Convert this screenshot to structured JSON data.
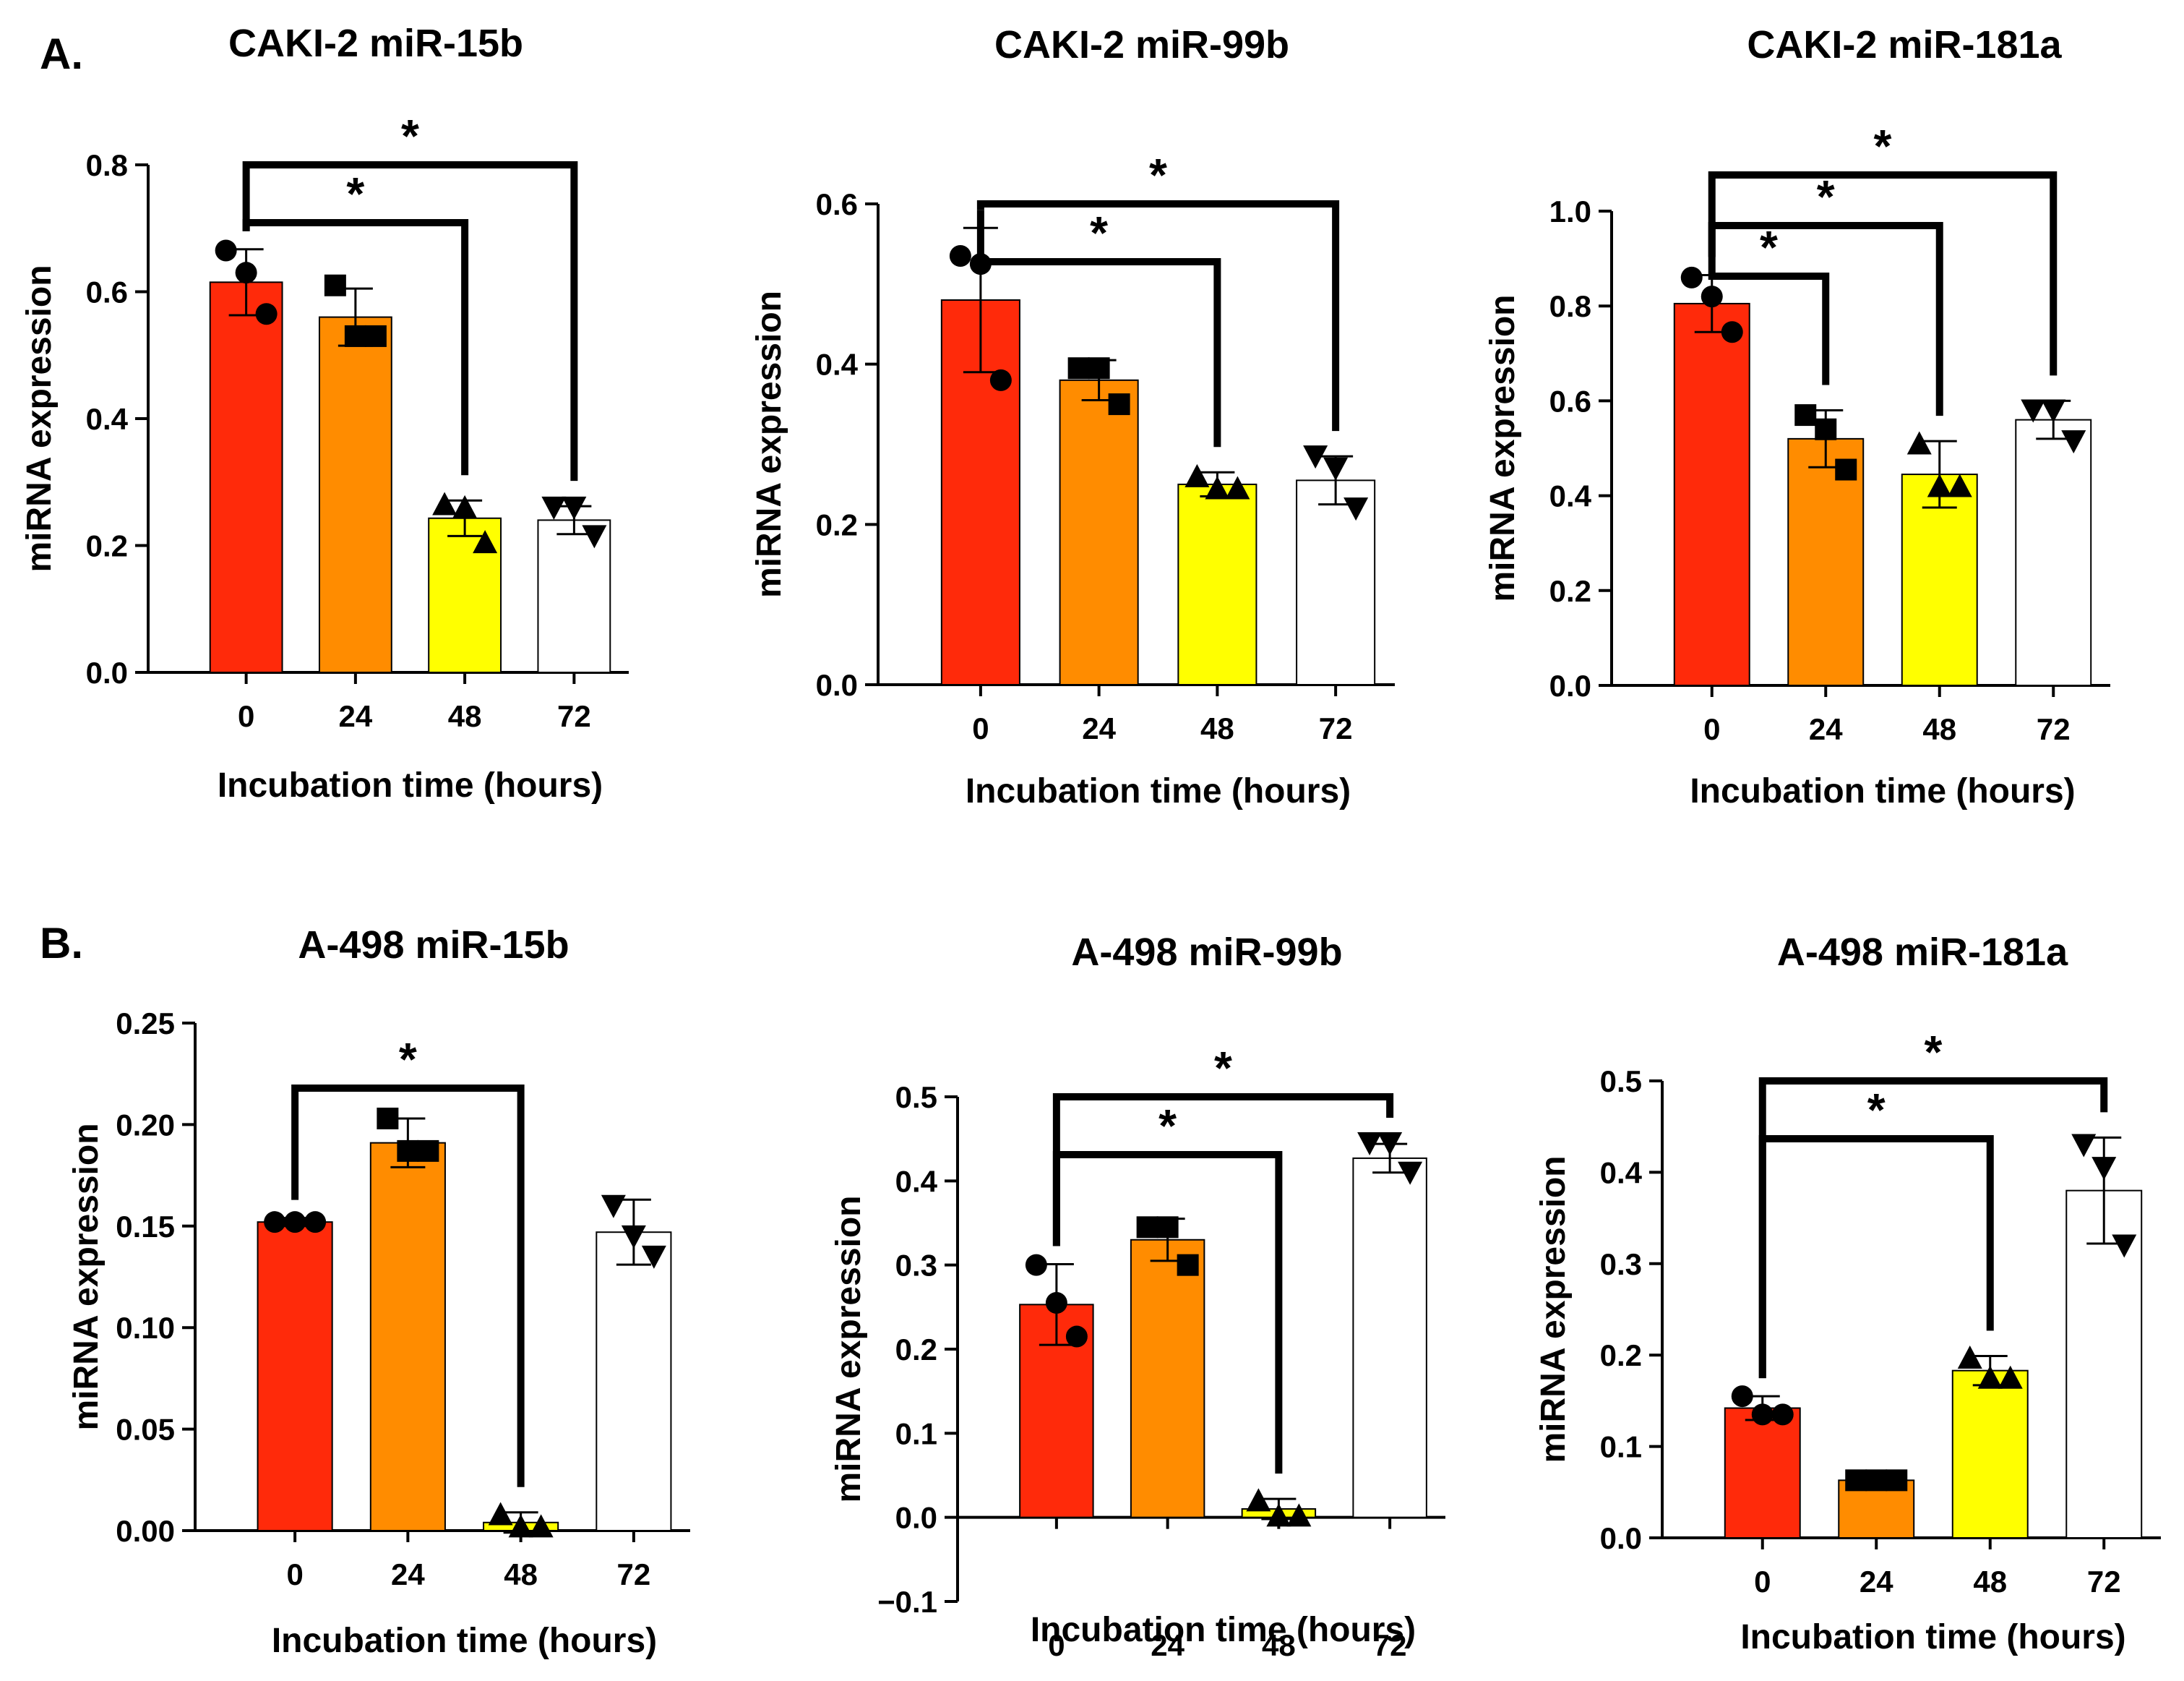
{
  "panels": [
    {
      "label": "A."
    },
    {
      "label": "B."
    }
  ],
  "chart_data": [
    {
      "type": "bar",
      "title": "CAKI-2  miR-15b",
      "xlabel": "Incubation time (hours)",
      "ylabel": "miRNA expression",
      "categories": [
        "0",
        "24",
        "48",
        "72"
      ],
      "values": [
        0.615,
        0.56,
        0.243,
        0.24
      ],
      "errors": [
        0.052,
        0.045,
        0.028,
        0.022
      ],
      "points": [
        [
          0.665,
          0.63,
          0.565
        ],
        [
          0.61,
          0.53,
          0.53
        ],
        [
          0.265,
          0.26,
          0.205
        ],
        [
          0.26,
          0.26,
          0.215
        ]
      ],
      "markers": [
        "circle",
        "square",
        "triangle",
        "triangle-down"
      ],
      "colors": [
        "#ff2a0a",
        "#ff8c00",
        "#ffff00",
        "#ffffff"
      ],
      "ylim": [
        0,
        0.8
      ],
      "yticks": [
        "0.0",
        "0.2",
        "0.4",
        "0.6",
        "0.8"
      ],
      "significance": [
        {
          "from": "0",
          "to": "48",
          "label": "*"
        },
        {
          "from": "0",
          "to": "72",
          "label": "*"
        }
      ]
    },
    {
      "type": "bar",
      "title": "CAKI-2 miR-99b",
      "xlabel": "Incubation time (hours)",
      "ylabel": "miRNA expression",
      "categories": [
        "0",
        "24",
        "48",
        "72"
      ],
      "values": [
        0.48,
        0.38,
        0.25,
        0.255
      ],
      "errors": [
        0.09,
        0.025,
        0.015,
        0.03
      ],
      "points": [
        [
          0.535,
          0.525,
          0.38
        ],
        [
          0.395,
          0.395,
          0.35
        ],
        [
          0.26,
          0.245,
          0.245
        ],
        [
          0.285,
          0.27,
          0.22
        ]
      ],
      "markers": [
        "circle",
        "square",
        "triangle",
        "triangle-down"
      ],
      "colors": [
        "#ff2a0a",
        "#ff8c00",
        "#ffff00",
        "#ffffff"
      ],
      "ylim": [
        0,
        0.6
      ],
      "yticks": [
        "0.0",
        "0.2",
        "0.4",
        "0.6"
      ],
      "significance": [
        {
          "from": "0",
          "to": "48",
          "label": "*"
        },
        {
          "from": "0",
          "to": "72",
          "label": "*"
        }
      ]
    },
    {
      "type": "bar",
      "title": "CAKI-2 miR-181a",
      "xlabel": "Incubation time (hours)",
      "ylabel": "miRNA expression",
      "categories": [
        "0",
        "24",
        "48",
        "72"
      ],
      "values": [
        0.805,
        0.52,
        0.445,
        0.56
      ],
      "errors": [
        0.06,
        0.06,
        0.07,
        0.04
      ],
      "points": [
        [
          0.86,
          0.82,
          0.745
        ],
        [
          0.57,
          0.54,
          0.455
        ],
        [
          0.51,
          0.42,
          0.42
        ],
        [
          0.58,
          0.58,
          0.515
        ]
      ],
      "markers": [
        "circle",
        "square",
        "triangle",
        "triangle-down"
      ],
      "colors": [
        "#ff2a0a",
        "#ff8c00",
        "#ffff00",
        "#ffffff"
      ],
      "ylim": [
        0,
        1.0
      ],
      "yticks": [
        "0.0",
        "0.2",
        "0.4",
        "0.6",
        "0.8",
        "1.0"
      ],
      "significance": [
        {
          "from": "0",
          "to": "24",
          "label": "*"
        },
        {
          "from": "0",
          "to": "48",
          "label": "*"
        },
        {
          "from": "0",
          "to": "72",
          "label": "*"
        }
      ]
    },
    {
      "type": "bar",
      "title": "A-498 miR-15b",
      "xlabel": "Incubation time (hours)",
      "ylabel": "miRNA expression",
      "categories": [
        "0",
        "24",
        "48",
        "72"
      ],
      "values": [
        0.152,
        0.191,
        0.004,
        0.147
      ],
      "errors": [
        0.002,
        0.012,
        0.005,
        0.016
      ],
      "points": [
        [
          0.152,
          0.152,
          0.152
        ],
        [
          0.203,
          0.187,
          0.187
        ],
        [
          0.008,
          0.002,
          0.002
        ],
        [
          0.16,
          0.145,
          0.135
        ]
      ],
      "markers": [
        "circle",
        "square",
        "triangle",
        "triangle-down"
      ],
      "colors": [
        "#ff2a0a",
        "#ff8c00",
        "#ffff00",
        "#ffffff"
      ],
      "ylim": [
        0,
        0.25
      ],
      "yticks": [
        "0.00",
        "0.05",
        "0.10",
        "0.15",
        "0.20",
        "0.25"
      ],
      "significance": [
        {
          "from": "0",
          "to": "48",
          "label": "*"
        }
      ]
    },
    {
      "type": "bar",
      "title": "A-498 miR-99b",
      "xlabel": "Incubation time (hours)",
      "ylabel": "miRNA expression",
      "categories": [
        "0",
        "24",
        "48",
        "72"
      ],
      "values": [
        0.253,
        0.33,
        0.01,
        0.427
      ],
      "errors": [
        0.048,
        0.025,
        0.012,
        0.017
      ],
      "points": [
        [
          0.3,
          0.255,
          0.215
        ],
        [
          0.345,
          0.345,
          0.3
        ],
        [
          0.02,
          0.002,
          0.002
        ],
        [
          0.445,
          0.445,
          0.41
        ]
      ],
      "markers": [
        "circle",
        "square",
        "triangle",
        "triangle-down"
      ],
      "colors": [
        "#ff2a0a",
        "#ff8c00",
        "#ffff00",
        "#ffffff"
      ],
      "ylim": [
        -0.1,
        0.5
      ],
      "yticks": [
        "−0.1",
        "0.0",
        "0.1",
        "0.2",
        "0.3",
        "0.4",
        "0.5"
      ],
      "significance": [
        {
          "from": "0",
          "to": "48",
          "label": "*"
        },
        {
          "from": "0",
          "to": "72",
          "label": "*"
        }
      ]
    },
    {
      "type": "bar",
      "title": "A-498 miR-181a",
      "xlabel": "Incubation time (hours)",
      "ylabel": "miRNA expression",
      "categories": [
        "0",
        "24",
        "48",
        "72"
      ],
      "values": [
        0.142,
        0.063,
        0.183,
        0.38
      ],
      "errors": [
        0.013,
        0.005,
        0.016,
        0.058
      ],
      "points": [
        [
          0.155,
          0.135,
          0.135
        ],
        [
          0.063,
          0.063,
          0.063
        ],
        [
          0.197,
          0.175,
          0.175
        ],
        [
          0.43,
          0.405,
          0.32
        ]
      ],
      "markers": [
        "circle",
        "square",
        "triangle",
        "triangle-down"
      ],
      "colors": [
        "#ff2a0a",
        "#ff8c00",
        "#ffff00",
        "#ffffff"
      ],
      "ylim": [
        0,
        0.5
      ],
      "yticks": [
        "0.0",
        "0.1",
        "0.2",
        "0.3",
        "0.4",
        "0.5"
      ],
      "significance": [
        {
          "from": "0",
          "to": "48",
          "label": "*"
        },
        {
          "from": "0",
          "to": "72",
          "label": "*"
        }
      ]
    }
  ]
}
